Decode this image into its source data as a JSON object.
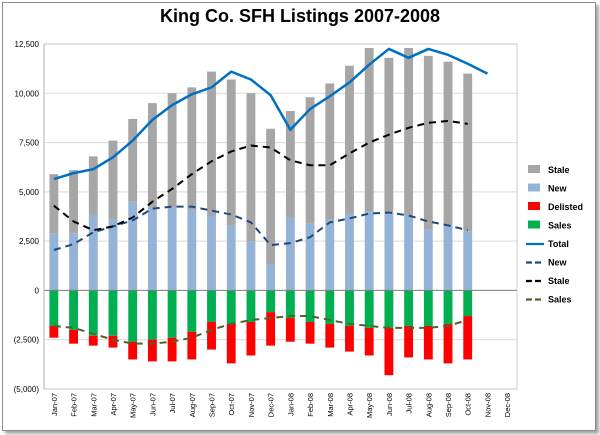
{
  "chart_data": {
    "type": "bar",
    "title": "King Co. SFH Listings 2007-2008",
    "categories": [
      "Jan-07",
      "Feb-07",
      "Mar-07",
      "Apr-07",
      "May-07",
      "Jun-07",
      "Jul-07",
      "Aug-07",
      "Sep-07",
      "Oct-07",
      "Nov-07",
      "Dec-07",
      "Jan-08",
      "Feb-08",
      "Mar-08",
      "Apr-08",
      "May-08",
      "Jun-08",
      "Jul-08",
      "Aug-08",
      "Sep-08",
      "Oct-08",
      "Nov-08",
      "Dec-08"
    ],
    "ylim": [
      -5000,
      12500
    ],
    "yticks": [
      -5000,
      -2500,
      0,
      2500,
      5000,
      7500,
      10000,
      12500
    ],
    "ytick_labels": [
      "(5,000)",
      "(2,500)",
      "0",
      "2,500",
      "5,000",
      "7,500",
      "10,000",
      "12,500"
    ],
    "grid": "horizontal",
    "legend_position": "right",
    "colors": {
      "stale": "#a6a6a6",
      "new": "#95b3d7",
      "delisted": "#ff0000",
      "sales": "#00b050",
      "total": "#0070c0",
      "new_line": "#1f497d",
      "stale_line": "#000000",
      "sales_line": "#4f6228"
    },
    "legend": [
      {
        "label": "Stale",
        "kind": "box",
        "color": "#a6a6a6"
      },
      {
        "label": "New",
        "kind": "box",
        "color": "#95b3d7"
      },
      {
        "label": "Delisted",
        "kind": "box",
        "color": "#ff0000"
      },
      {
        "label": "Sales",
        "kind": "box",
        "color": "#00b050"
      },
      {
        "label": "Total",
        "kind": "solid",
        "color": "#0070c0"
      },
      {
        "label": "New",
        "kind": "dash",
        "color": "#1f497d"
      },
      {
        "label": "Stale",
        "kind": "dash",
        "color": "#000000"
      },
      {
        "label": "Sales",
        "kind": "dash",
        "color": "#4f6228"
      }
    ],
    "bar_series": [
      {
        "name": "New",
        "values": [
          2900,
          2900,
          3800,
          3600,
          4500,
          4200,
          4200,
          4100,
          3800,
          3300,
          2500,
          1300,
          3700,
          3400,
          3600,
          3900,
          4000,
          3900,
          3800,
          3100,
          3300,
          3000,
          null,
          null
        ]
      },
      {
        "name": "Stale",
        "values": [
          3000,
          3200,
          3000,
          4000,
          4200,
          5300,
          5800,
          6200,
          7300,
          7400,
          7500,
          6900,
          5400,
          6400,
          6900,
          7500,
          8300,
          7900,
          8500,
          8800,
          8300,
          8000,
          null,
          null
        ]
      },
      {
        "name": "Sales",
        "values": [
          -1800,
          -2000,
          -2300,
          -2300,
          -2600,
          -2500,
          -2400,
          -2100,
          -1600,
          -1700,
          -1600,
          -1100,
          -1400,
          -1600,
          -1700,
          -1800,
          -1900,
          -1900,
          -1800,
          -1800,
          -1700,
          -1300,
          null,
          null
        ]
      },
      {
        "name": "Delisted",
        "values": [
          -600,
          -700,
          -500,
          -600,
          -900,
          -1100,
          -1200,
          -1400,
          -1400,
          -2000,
          -1700,
          -1700,
          -1200,
          -1100,
          -1200,
          -1300,
          -1400,
          -2400,
          -1600,
          -1700,
          -2000,
          -2200,
          null,
          null
        ]
      }
    ],
    "line_series": [
      {
        "name": "Total",
        "values": [
          5650,
          5950,
          6150,
          6750,
          7600,
          8650,
          9400,
          9950,
          10300,
          11100,
          10700,
          9900,
          8150,
          9200,
          9850,
          10550,
          11450,
          12250,
          11800,
          12250,
          11950,
          11500,
          11000,
          null
        ]
      },
      {
        "name": "New",
        "values": [
          2050,
          2350,
          2950,
          3250,
          3550,
          4150,
          4250,
          4250,
          4050,
          3850,
          3450,
          2300,
          2400,
          2700,
          3450,
          3650,
          3900,
          3950,
          3800,
          3500,
          3300,
          3050,
          null,
          null
        ]
      },
      {
        "name": "Stale",
        "values": [
          4300,
          3500,
          3050,
          3250,
          3700,
          4500,
          5150,
          5900,
          6550,
          7050,
          7350,
          7250,
          6600,
          6350,
          6350,
          6950,
          7500,
          7900,
          8250,
          8500,
          8600,
          8450,
          null,
          null
        ]
      },
      {
        "name": "Sales",
        "values": [
          -1800,
          -1900,
          -2200,
          -2500,
          -2700,
          -2700,
          -2600,
          -2400,
          -2000,
          -1700,
          -1500,
          -1400,
          -1300,
          -1300,
          -1500,
          -1700,
          -1800,
          -1900,
          -1900,
          -1900,
          -1800,
          -1500,
          null,
          null
        ]
      }
    ]
  }
}
